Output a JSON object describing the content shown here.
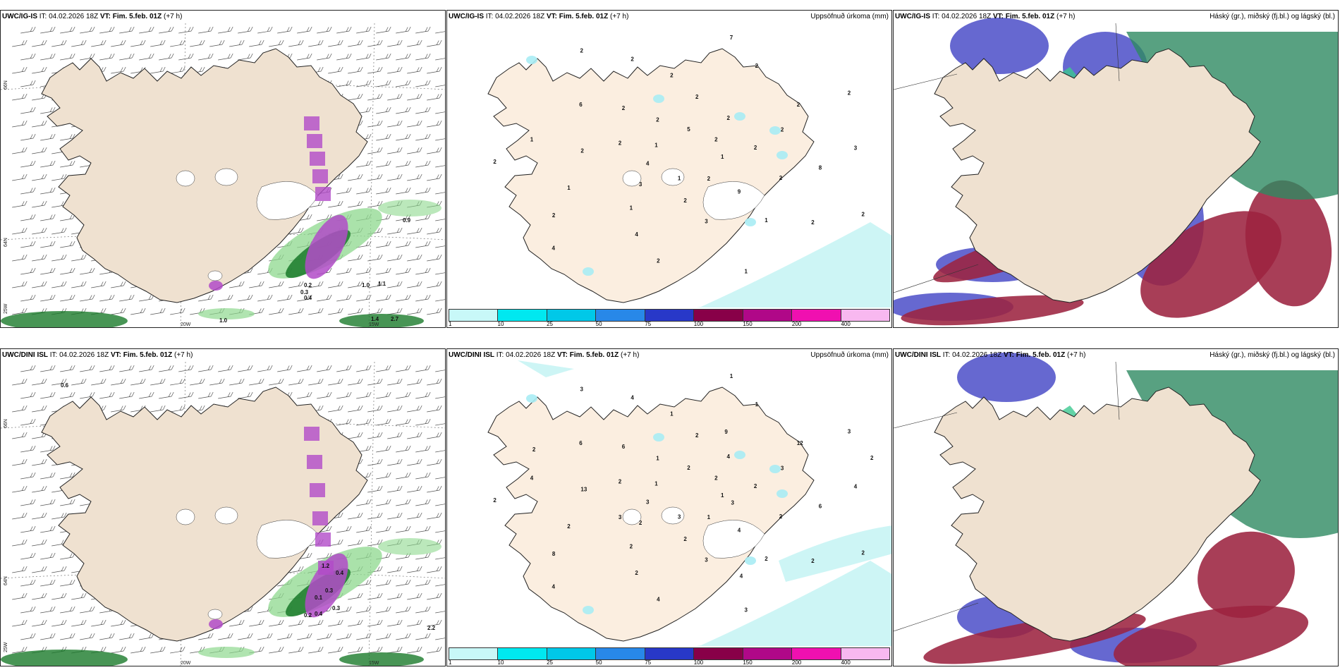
{
  "rows": [
    {
      "model": "UWC/IG-IS",
      "it": "IT: 04.02.2026 18Z",
      "vt_label": "VT:",
      "vt": "Fim. 5.feb. 01Z",
      "lead": "(+7 h)",
      "precip_labels": [
        {
          "v": "1"
        },
        {
          "v": "3"
        },
        {
          "v": "2"
        },
        {
          "v": "1"
        },
        {
          "v": "1"
        },
        {
          "v": "2"
        },
        {
          "v": "1"
        },
        {
          "v": "2"
        },
        {
          "v": "2"
        },
        {
          "v": "1"
        },
        {
          "v": "2"
        },
        {
          "v": "1"
        },
        {
          "v": "1"
        },
        {
          "v": "2"
        },
        {
          "v": "1"
        },
        {
          "v": "2"
        },
        {
          "v": "2"
        },
        {
          "v": "2"
        },
        {
          "v": "2"
        },
        {
          "v": "2"
        },
        {
          "v": "2"
        },
        {
          "v": "8"
        },
        {
          "v": "2"
        },
        {
          "v": "7"
        },
        {
          "v": "2"
        },
        {
          "v": "2"
        },
        {
          "v": "2"
        },
        {
          "v": "4"
        },
        {
          "v": "2"
        },
        {
          "v": "2"
        },
        {
          "v": "4"
        },
        {
          "v": "2"
        },
        {
          "v": "3"
        },
        {
          "v": "6"
        },
        {
          "v": "3"
        },
        {
          "v": "4"
        },
        {
          "v": "5"
        },
        {
          "v": "9"
        },
        {
          "v": "2"
        },
        {
          "v": "2"
        },
        {
          "v": "2"
        },
        {
          "v": "2"
        }
      ],
      "wind_labels": [
        "0.9",
        "1.0",
        "1.1",
        "0.2",
        "0.3",
        "0.4",
        "1.0",
        "1.4",
        "2.7"
      ]
    },
    {
      "model": "UWC/DINI ISL",
      "it": "IT: 04.02.2026 18Z",
      "vt_label": "VT:",
      "vt": "Fim. 5.feb. 01Z",
      "lead": "(+7 h)",
      "precip_labels": [
        {
          "v": "1"
        },
        {
          "v": "2"
        },
        {
          "v": "2"
        },
        {
          "v": "2"
        },
        {
          "v": "4"
        },
        {
          "v": "3"
        },
        {
          "v": "3"
        },
        {
          "v": "1"
        },
        {
          "v": "2"
        },
        {
          "v": "2"
        },
        {
          "v": "1"
        },
        {
          "v": "3"
        },
        {
          "v": "1"
        },
        {
          "v": "2"
        },
        {
          "v": "2"
        },
        {
          "v": "1"
        },
        {
          "v": "2"
        },
        {
          "v": "2"
        },
        {
          "v": "2"
        },
        {
          "v": "2"
        },
        {
          "v": "6"
        },
        {
          "v": "6"
        },
        {
          "v": "8"
        },
        {
          "v": "1"
        },
        {
          "v": "1"
        },
        {
          "v": "2"
        },
        {
          "v": "3"
        },
        {
          "v": "2"
        },
        {
          "v": "4"
        },
        {
          "v": "2"
        },
        {
          "v": "3"
        },
        {
          "v": "4"
        },
        {
          "v": "3"
        },
        {
          "v": "6"
        },
        {
          "v": "4"
        },
        {
          "v": "4"
        },
        {
          "v": "2"
        },
        {
          "v": "4"
        },
        {
          "v": "13"
        },
        {
          "v": "12"
        },
        {
          "v": "4"
        },
        {
          "v": "3"
        },
        {
          "v": "3"
        },
        {
          "v": "3"
        },
        {
          "v": "9"
        },
        {
          "v": "4"
        },
        {
          "v": "2"
        },
        {
          "v": "2"
        }
      ],
      "wind_labels": [
        "0.6",
        "0.3",
        "0.1",
        "1.2",
        "0.4",
        "0.2",
        "0.3",
        "2.2",
        "0.4"
      ]
    }
  ],
  "precip_title": "Uppsöfnuð úrkoma (mm)",
  "cloud_title": "Háský (gr.), miðský (fj.bl.) og lágský (bl.)",
  "axis_labels": {
    "lat66": "66N",
    "lat64": "64N",
    "lon25": "25W",
    "lon20": "20W",
    "lon15": "15W"
  },
  "scale": {
    "ticks": [
      "1",
      "10",
      "25",
      "50",
      "75",
      "100",
      "150",
      "200",
      "400"
    ],
    "colors": [
      "#c8f8f8",
      "#00e8f0",
      "#00c8e8",
      "#2888e8",
      "#2838c8",
      "#880048",
      "#b00888",
      "#f010b0",
      "#f8b8f0"
    ]
  },
  "colors": {
    "land": "#efe1d0",
    "land_precip": "#fbeee0",
    "coast": "#222222",
    "magenta": "#b24bc8",
    "green_dark": "#1a7a2a",
    "green_light": "#8ed88e",
    "cyan_light": "#c8f4f4",
    "cloud_blue": "#4b4ec8",
    "cloud_red": "#9c2340",
    "cloud_green": "#2e8a62",
    "cloud_teal": "#3cc890"
  }
}
